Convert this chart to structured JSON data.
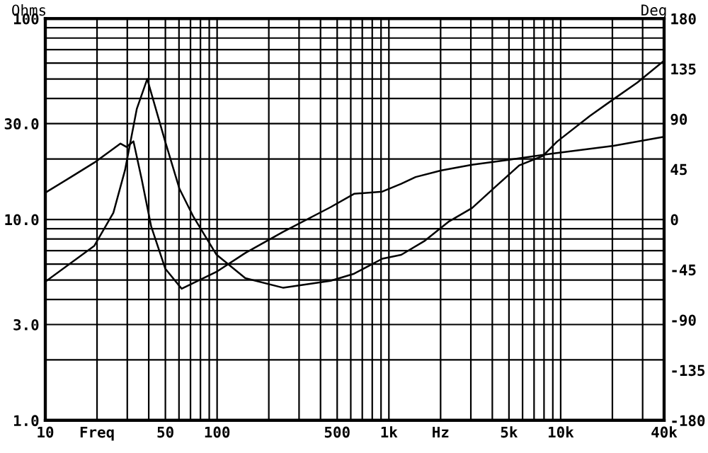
{
  "chart_data": {
    "type": "line",
    "ylabel": "Ohms",
    "y2label": "Deg",
    "log": "xy",
    "grid": true,
    "legend": false,
    "marker": "none",
    "line_style": "solid",
    "xlim": [
      10,
      40000
    ],
    "xticks": [
      10,
      {
        "value": 20,
        "label": "Freq"
      },
      {
        "value": 30,
        "label": null
      },
      {
        "value": 40,
        "label": null
      },
      50,
      {
        "value": 60,
        "label": null
      },
      {
        "value": 70,
        "label": null
      },
      {
        "value": 80,
        "label": null
      },
      {
        "value": 90,
        "label": null
      },
      100,
      {
        "value": 200,
        "label": null
      },
      {
        "value": 300,
        "label": null
      },
      {
        "value": 400,
        "label": null
      },
      500,
      {
        "value": 600,
        "label": null
      },
      {
        "value": 700,
        "label": null
      },
      {
        "value": 800,
        "label": null
      },
      {
        "value": 900,
        "label": null
      },
      {
        "value": 1000,
        "label": "1k"
      },
      {
        "value": 2000,
        "label": "Hz"
      },
      {
        "value": 3000,
        "label": null
      },
      {
        "value": 4000,
        "label": null
      },
      {
        "value": 5000,
        "label": "5k"
      },
      {
        "value": 6000,
        "label": null
      },
      {
        "value": 7000,
        "label": null
      },
      {
        "value": 8000,
        "label": null
      },
      {
        "value": 9000,
        "label": null
      },
      {
        "value": 10000,
        "label": "10k"
      },
      {
        "value": 20000,
        "label": null
      },
      {
        "value": 30000,
        "label": null
      },
      {
        "value": 40000,
        "label": "40k"
      }
    ],
    "ylim": [
      1,
      100
    ],
    "yticks": [
      {
        "value": 1,
        "label": "1.0"
      },
      {
        "value": 2,
        "label": null
      },
      {
        "value": 3,
        "label": "3.0"
      },
      {
        "value": 4,
        "label": null
      },
      {
        "value": 5,
        "label": null
      },
      {
        "value": 6,
        "label": null
      },
      {
        "value": 7,
        "label": null
      },
      {
        "value": 8,
        "label": null
      },
      {
        "value": 9,
        "label": null
      },
      {
        "value": 10,
        "label": "10.0"
      },
      {
        "value": 20,
        "label": null
      },
      {
        "value": 30,
        "label": "30.0"
      },
      {
        "value": 40,
        "label": null
      },
      {
        "value": 50,
        "label": null
      },
      {
        "value": 60,
        "label": null
      },
      {
        "value": 70,
        "label": null
      },
      {
        "value": 80,
        "label": null
      },
      {
        "value": 90,
        "label": null
      },
      100
    ],
    "y2lim": [
      -180,
      180
    ],
    "y2ticks": [
      -180,
      -135,
      -90,
      -45,
      0,
      45,
      90,
      135,
      180
    ],
    "series": [
      {
        "color": "#000000",
        "x": [
          10,
          19.3,
          24.9,
          29.1,
          34.1,
          39.2,
          49.9,
          60.4,
          72.9,
          98.9,
          146,
          243,
          457,
          627,
          916,
          1180,
          1620,
          2220,
          3050,
          4190,
          5740,
          7870,
          9520,
          14800,
          20300,
          27900,
          39500
        ],
        "values": [
          4.9,
          7.4,
          10.8,
          17.6,
          35.6,
          50,
          24.4,
          14.2,
          10.3,
          6.7,
          5.1,
          4.57,
          4.95,
          5.37,
          6.38,
          6.67,
          7.84,
          9.73,
          11.4,
          14.6,
          18.6,
          20.7,
          24.4,
          32.8,
          39.7,
          48,
          61.2
        ]
      },
      {
        "color": "#000000",
        "axis": "y2",
        "x": [
          10,
          14.1,
          19.3,
          27.4,
          29.7,
          32.6,
          36.4,
          41.3,
          49.9,
          62.2,
          98.9,
          146,
          243,
          457,
          627,
          916,
          1180,
          1430,
          2020,
          3050,
          4750,
          8930,
          20300,
          39500
        ],
        "values": [
          24,
          38,
          51,
          68,
          65,
          70,
          36,
          -6,
          -44,
          -62,
          -47,
          -30,
          -11,
          11,
          23,
          25,
          32,
          38,
          44,
          49,
          53,
          59,
          66,
          74
        ]
      }
    ]
  }
}
